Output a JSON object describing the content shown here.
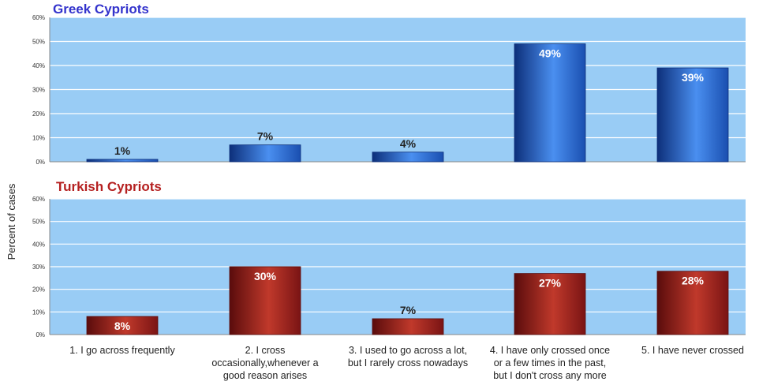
{
  "ylabel": "Percent of cases",
  "chart_data": [
    {
      "type": "bar",
      "title": "Greek  Cypriots",
      "categories": [
        "1. I go across frequently",
        "2. I cross occasionally,whenever a good reason arises",
        "3. I used to go across a lot, but I rarely cross nowadays",
        "4. I have only crossed once or a few times in the past, but I don't cross any more",
        "5. I have never crossed"
      ],
      "values": [
        1,
        7,
        4,
        49,
        39
      ],
      "data_labels": [
        "1%",
        "7%",
        "4%",
        "49%",
        "39%"
      ],
      "yticks": [
        "0%",
        "10%",
        "20%",
        "30%",
        "40%",
        "50%",
        "60%"
      ],
      "ylim": [
        0,
        60
      ],
      "grid": true,
      "colors": {
        "title": "#3333cc",
        "bar_dark": "#0d2f7a",
        "bar_light": "#4a8ff0",
        "plot_bg": "#99ccf5"
      }
    },
    {
      "type": "bar",
      "title": "Turkish Cypriots",
      "categories": [
        "1. I go across frequently",
        "2. I cross occasionally,whenever a good reason arises",
        "3. I used to go across a lot, but I rarely cross nowadays",
        "4. I have only crossed once or a few times in the past, but I don't cross any more",
        "5. I have never crossed"
      ],
      "values": [
        8,
        30,
        7,
        27,
        28
      ],
      "data_labels": [
        "8%",
        "30%",
        "7%",
        "27%",
        "28%"
      ],
      "yticks": [
        "0%",
        "10%",
        "20%",
        "30%",
        "40%",
        "50%",
        "60%"
      ],
      "ylim": [
        0,
        60
      ],
      "grid": true,
      "colors": {
        "title": "#b52020",
        "bar_dark": "#5a0c0c",
        "bar_light": "#c0392b",
        "plot_bg": "#99ccf5"
      }
    }
  ],
  "xaxis_labels": [
    [
      "1. I go across frequently"
    ],
    [
      "2. I cross",
      "occasionally,whenever a",
      "good reason arises"
    ],
    [
      "3. I used to go across a lot,",
      "but I rarely cross nowadays"
    ],
    [
      "4. I have only crossed once",
      "or a few times in the past,",
      "but I don't cross any more"
    ],
    [
      "5. I have never crossed"
    ]
  ]
}
